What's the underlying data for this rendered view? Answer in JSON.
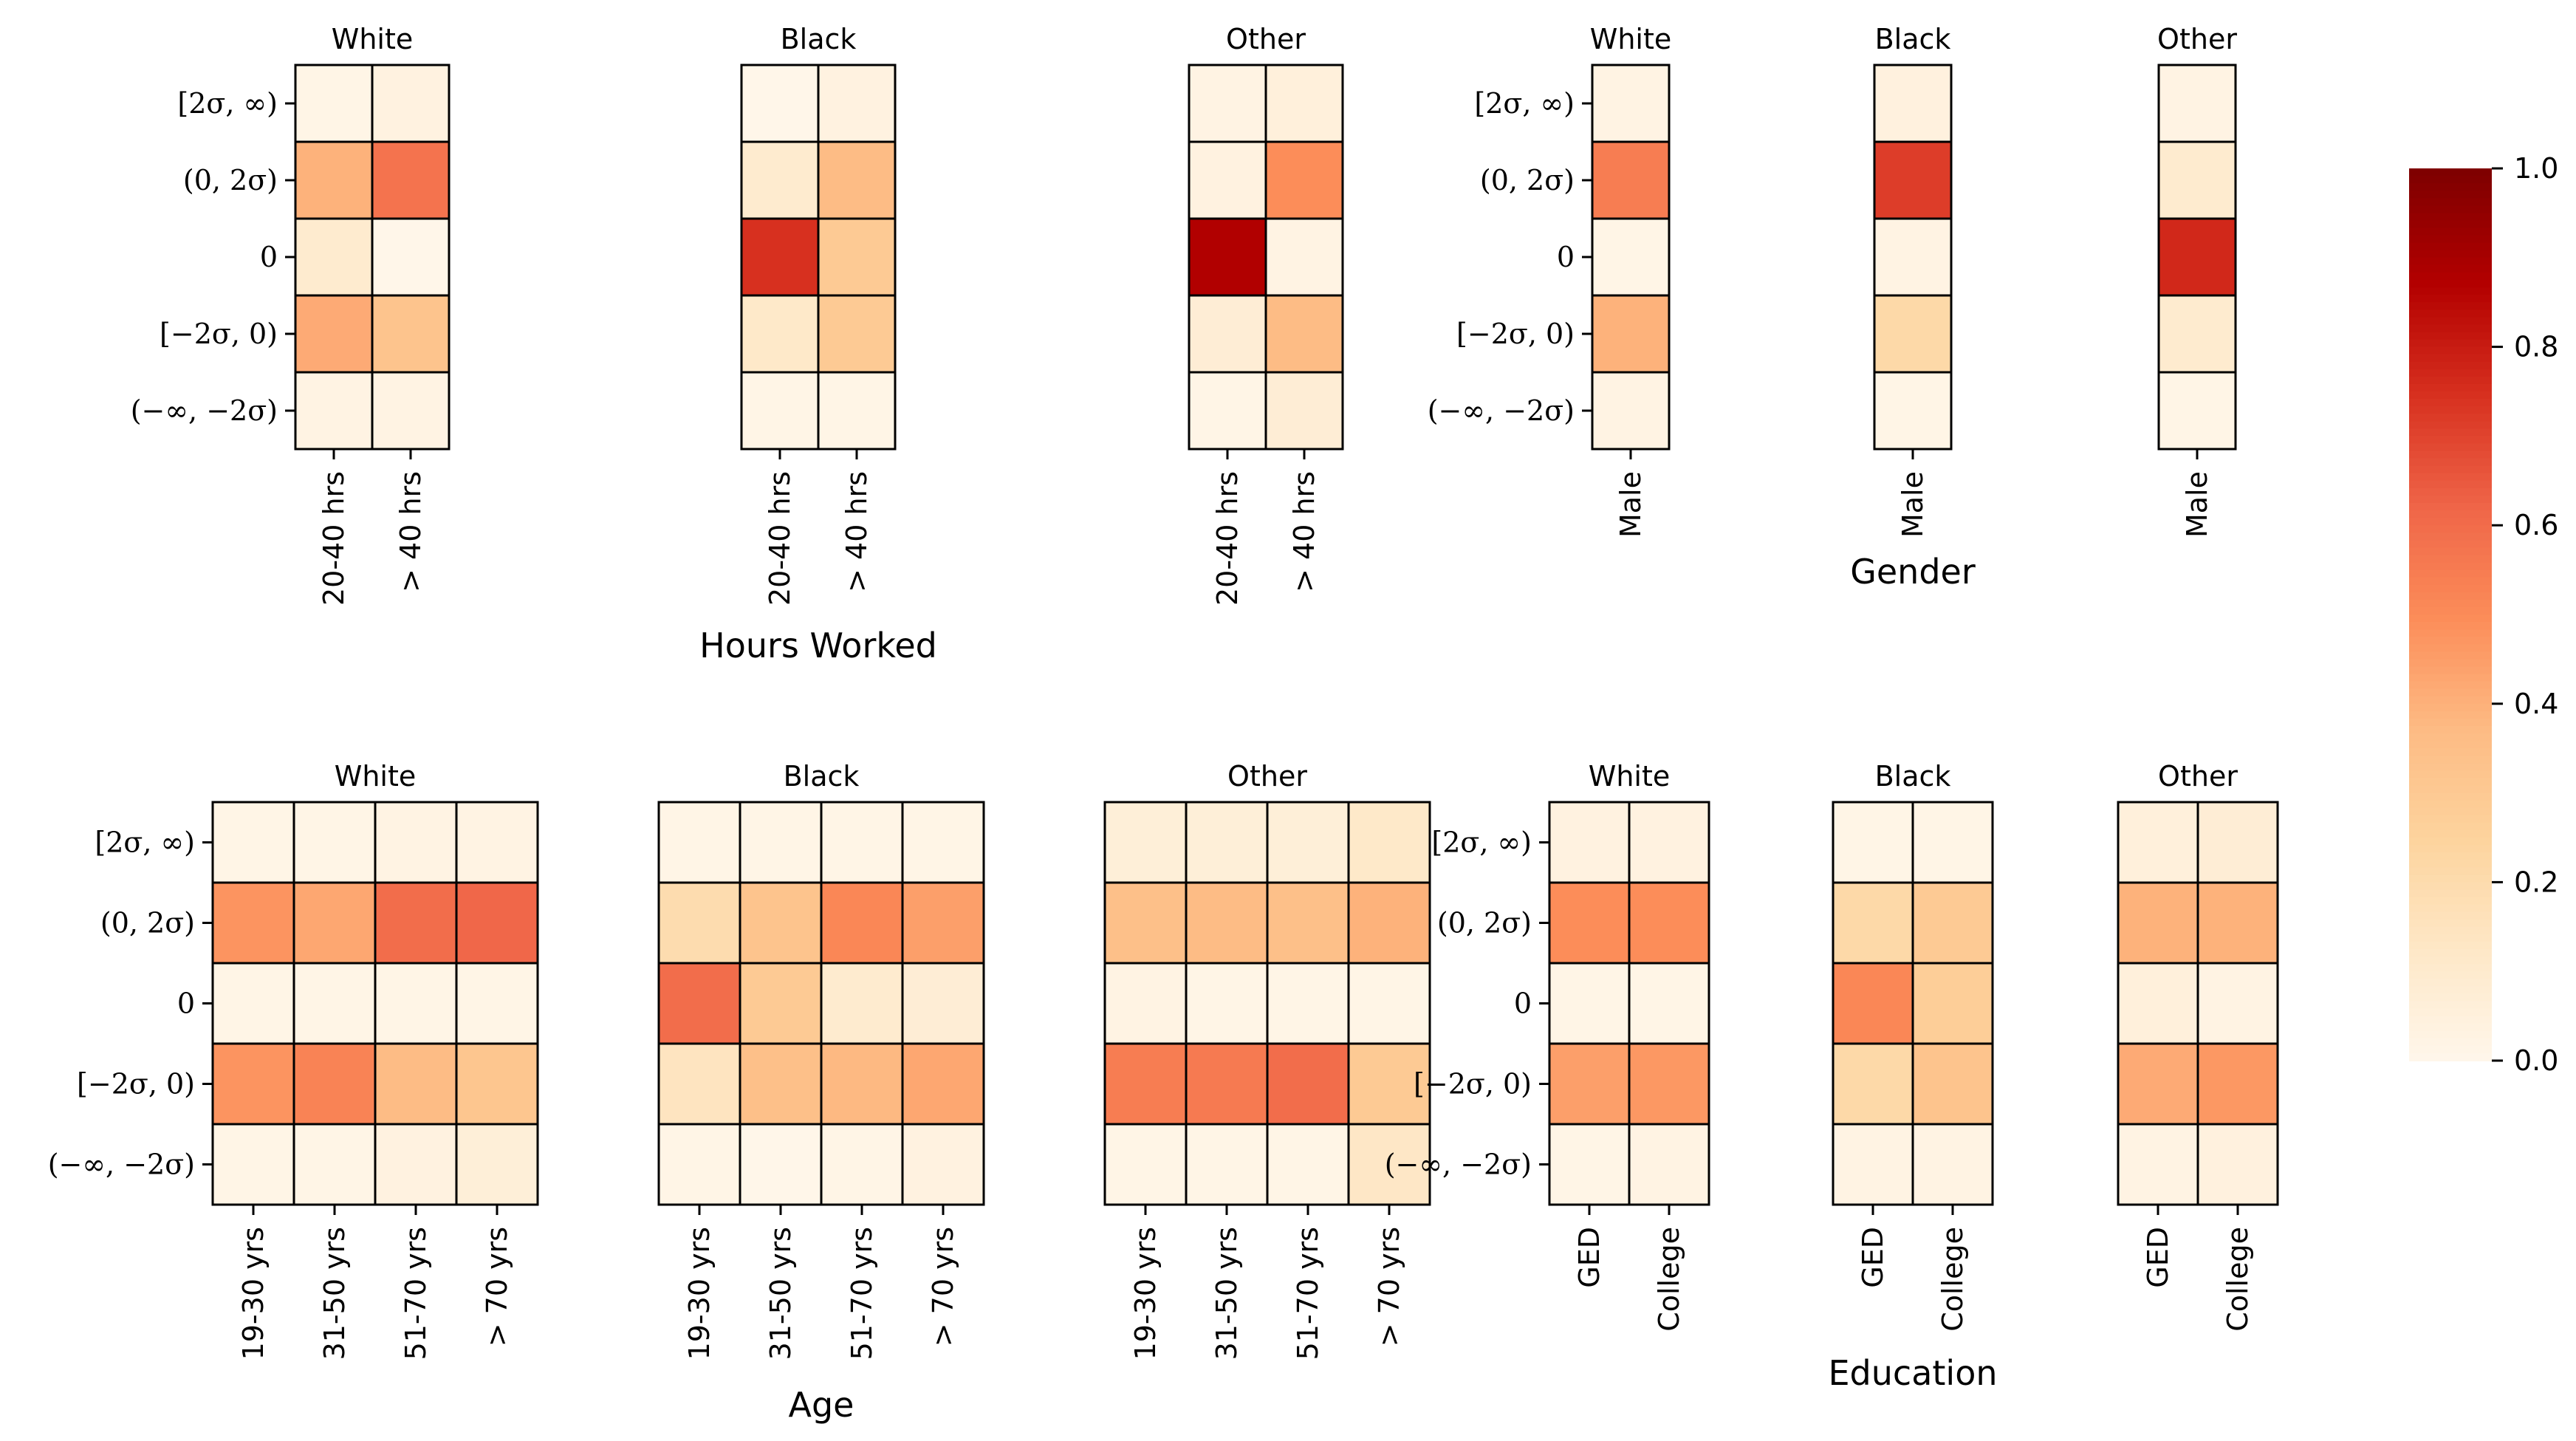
{
  "chart_data": {
    "type": "heatmap",
    "colormap": "OrRd",
    "colorbar": {
      "min": 0.0,
      "max": 1.0,
      "ticks": [
        "0.0",
        "0.2",
        "0.4",
        "0.6",
        "0.8",
        "1.0"
      ]
    },
    "row_labels": [
      "[2σ, ∞)",
      "(0, 2σ)",
      "0",
      "[−2σ, 0)",
      "(−∞, −2σ)"
    ],
    "groups": [
      {
        "xlabel": "Hours Worked",
        "columns": [
          "20-40 hrs",
          "> 40 hrs"
        ],
        "panels": [
          {
            "title": "White",
            "values": [
              [
                0.02,
                0.04
              ],
              [
                0.4,
                0.58
              ],
              [
                0.1,
                0.01
              ],
              [
                0.42,
                0.33
              ],
              [
                0.03,
                0.03
              ]
            ]
          },
          {
            "title": "Black",
            "values": [
              [
                0.01,
                0.04
              ],
              [
                0.1,
                0.37
              ],
              [
                0.75,
                0.3
              ],
              [
                0.12,
                0.3
              ],
              [
                0.02,
                0.02
              ]
            ]
          },
          {
            "title": "Other",
            "values": [
              [
                0.03,
                0.06
              ],
              [
                0.04,
                0.5
              ],
              [
                0.88,
                0.03
              ],
              [
                0.08,
                0.37
              ],
              [
                0.02,
                0.08
              ]
            ]
          }
        ]
      },
      {
        "xlabel": "Gender",
        "columns": [
          "Male"
        ],
        "panels": [
          {
            "title": "White",
            "values": [
              [
                0.03
              ],
              [
                0.55
              ],
              [
                0.02
              ],
              [
                0.4
              ],
              [
                0.03
              ]
            ]
          },
          {
            "title": "Black",
            "values": [
              [
                0.05
              ],
              [
                0.72
              ],
              [
                0.03
              ],
              [
                0.22
              ],
              [
                0.02
              ]
            ]
          },
          {
            "title": "Other",
            "values": [
              [
                0.03
              ],
              [
                0.1
              ],
              [
                0.77
              ],
              [
                0.1
              ],
              [
                0.02
              ]
            ]
          }
        ]
      },
      {
        "xlabel": "Age",
        "columns": [
          "19-30 yrs",
          "31-50 yrs",
          "51-70 yrs",
          "> 70 yrs"
        ],
        "panels": [
          {
            "title": "White",
            "values": [
              [
                0.02,
                0.02,
                0.03,
                0.03
              ],
              [
                0.48,
                0.43,
                0.6,
                0.62
              ],
              [
                0.02,
                0.02,
                0.02,
                0.02
              ],
              [
                0.48,
                0.53,
                0.37,
                0.32
              ],
              [
                0.02,
                0.02,
                0.04,
                0.07
              ]
            ]
          },
          {
            "title": "Black",
            "values": [
              [
                0.02,
                0.02,
                0.02,
                0.02
              ],
              [
                0.2,
                0.33,
                0.52,
                0.45
              ],
              [
                0.6,
                0.3,
                0.1,
                0.08
              ],
              [
                0.15,
                0.35,
                0.38,
                0.43
              ],
              [
                0.02,
                0.01,
                0.02,
                0.04
              ]
            ]
          },
          {
            "title": "Other",
            "values": [
              [
                0.07,
                0.07,
                0.07,
                0.12
              ],
              [
                0.35,
                0.37,
                0.35,
                0.4
              ],
              [
                0.03,
                0.02,
                0.02,
                0.02
              ],
              [
                0.55,
                0.56,
                0.6,
                0.3
              ],
              [
                0.02,
                0.02,
                0.02,
                0.13
              ]
            ]
          }
        ]
      },
      {
        "xlabel": "Education",
        "columns": [
          "GED",
          "College"
        ],
        "panels": [
          {
            "title": "White",
            "values": [
              [
                0.04,
                0.04
              ],
              [
                0.5,
                0.5
              ],
              [
                0.02,
                0.02
              ],
              [
                0.45,
                0.47
              ],
              [
                0.02,
                0.03
              ]
            ]
          },
          {
            "title": "Black",
            "values": [
              [
                0.02,
                0.02
              ],
              [
                0.22,
                0.3
              ],
              [
                0.52,
                0.28
              ],
              [
                0.22,
                0.33
              ],
              [
                0.03,
                0.03
              ]
            ]
          },
          {
            "title": "Other",
            "values": [
              [
                0.06,
                0.08
              ],
              [
                0.4,
                0.4
              ],
              [
                0.06,
                0.03
              ],
              [
                0.42,
                0.47
              ],
              [
                0.03,
                0.05
              ]
            ]
          }
        ]
      }
    ]
  }
}
